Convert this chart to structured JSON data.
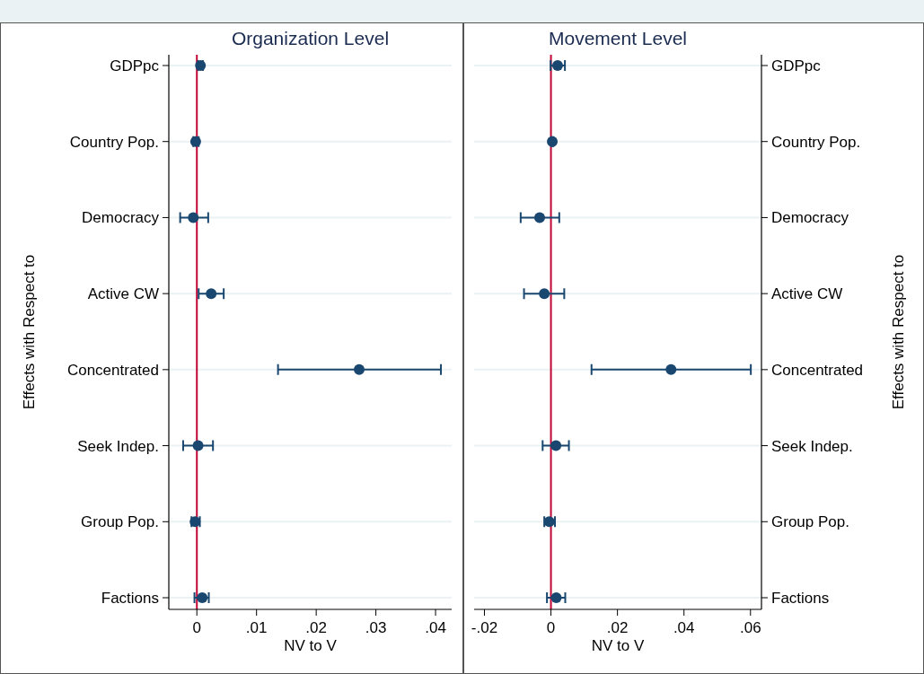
{
  "chart_data": [
    {
      "type": "scatter",
      "orientation": "horizontal",
      "title": "Organization Level",
      "xlabel": "NV to V",
      "ylabel": "Effects with Respect to",
      "categories": [
        "GDPpc",
        "Country Pop.",
        "Democracy",
        "Active CW",
        "Concentrated",
        "Seek Indep.",
        "Group Pop.",
        "Factions"
      ],
      "series": [
        {
          "color": "#1a476f",
          "values": [
            0.0006,
            -0.0002,
            -0.0006,
            0.0024,
            0.0272,
            0.0002,
            -0.0003,
            0.0009
          ],
          "errors": [
            [
              0.0002,
              0.001
            ],
            [
              -0.0006,
              0.0003
            ],
            [
              -0.0028,
              0.0019
            ],
            [
              0.0003,
              0.0045
            ],
            [
              0.0136,
              0.0409
            ],
            [
              -0.0023,
              0.0027
            ],
            [
              -0.0009,
              0.0005
            ],
            [
              -0.0004,
              0.002
            ]
          ]
        }
      ],
      "xlim": [
        -0.0047,
        0.0427
      ],
      "xticks": [
        0,
        {
          "value": 0.01,
          "label": ".01"
        },
        {
          "value": 0.02,
          "label": ".02"
        },
        {
          "value": 0.03,
          "label": ".03"
        },
        {
          "value": 0.04,
          "label": ".04"
        }
      ],
      "ref_lines": [
        {
          "axis": "x",
          "value": 0,
          "color": "#c10534"
        }
      ],
      "grid": "y",
      "marker": "circle"
    },
    {
      "type": "scatter",
      "orientation": "horizontal",
      "title": "Movement Level",
      "xlabel": "NV to V",
      "ylabel": "Effects with Respect to",
      "categories": [
        "GDPpc",
        "Country Pop.",
        "Democracy",
        "Active CW",
        "Concentrated",
        "Seek Indep.",
        "Group Pop.",
        "Factions"
      ],
      "series": [
        {
          "color": "#1a476f",
          "values": [
            0.002,
            0.0004,
            -0.0034,
            -0.002,
            0.0361,
            0.0015,
            -0.0005,
            0.0016
          ],
          "errors": [
            [
              -0.0001,
              0.0042
            ],
            [
              0.0001,
              0.0007
            ],
            [
              -0.0091,
              0.0025
            ],
            [
              -0.0081,
              0.004
            ],
            [
              0.0122,
              0.0601
            ],
            [
              -0.0025,
              0.0054
            ],
            [
              -0.002,
              0.0012
            ],
            [
              -0.0012,
              0.0043
            ]
          ]
        }
      ],
      "xlim": [
        -0.0231,
        0.0633
      ],
      "xticks": [
        {
          "value": -0.02,
          "label": "-.02"
        },
        0,
        {
          "value": 0.02,
          "label": ".02"
        },
        {
          "value": 0.04,
          "label": ".04"
        },
        {
          "value": 0.06,
          "label": ".06"
        }
      ],
      "ref_lines": [
        {
          "axis": "x",
          "value": 0,
          "color": "#c10534"
        }
      ],
      "grid": "y",
      "marker": "circle"
    }
  ]
}
